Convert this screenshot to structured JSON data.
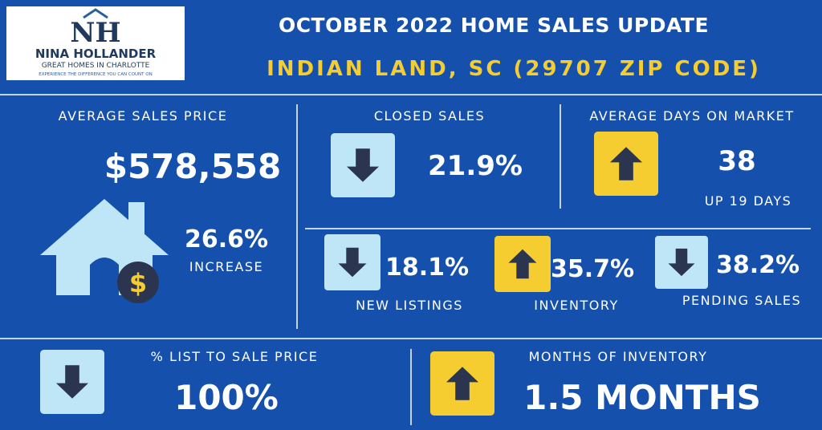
{
  "logo": {
    "monogram": "NH",
    "name": "NINA HOLLANDER",
    "tagline": "GREAT HOMES IN CHARLOTTE",
    "motto": "EXPERIENCE THE DIFFERENCE YOU CAN COUNT ON"
  },
  "header": {
    "title": "OCTOBER 2022 HOME SALES UPDATE",
    "subtitle": "INDIAN LAND, SC (29707 ZIP CODE)"
  },
  "stats": {
    "average_sales_price": {
      "label": "AVERAGE SALES PRICE",
      "value": "$578,558",
      "change": "26.6%",
      "note": "INCREASE",
      "icon_label": "$"
    },
    "closed_sales": {
      "label": "CLOSED SALES",
      "value": "21.9%",
      "direction": "down"
    },
    "average_days_on_market": {
      "label": "AVERAGE DAYS ON MARKET",
      "value": "38",
      "note": "UP 19 DAYS",
      "direction": "up"
    },
    "new_listings": {
      "label": "NEW LISTINGS",
      "value": "18.1%",
      "direction": "down"
    },
    "inventory": {
      "label": "INVENTORY",
      "value": "35.7%",
      "direction": "up"
    },
    "pending_sales": {
      "label": "PENDING SALES",
      "value": "38.2%",
      "direction": "down"
    },
    "list_to_sale_price": {
      "label": "% LIST TO SALE PRICE",
      "value": "100%",
      "direction": "down"
    },
    "months_of_inventory": {
      "label": "MONTHS OF INVENTORY",
      "value": "1.5 MONTHS",
      "direction": "up"
    }
  }
}
